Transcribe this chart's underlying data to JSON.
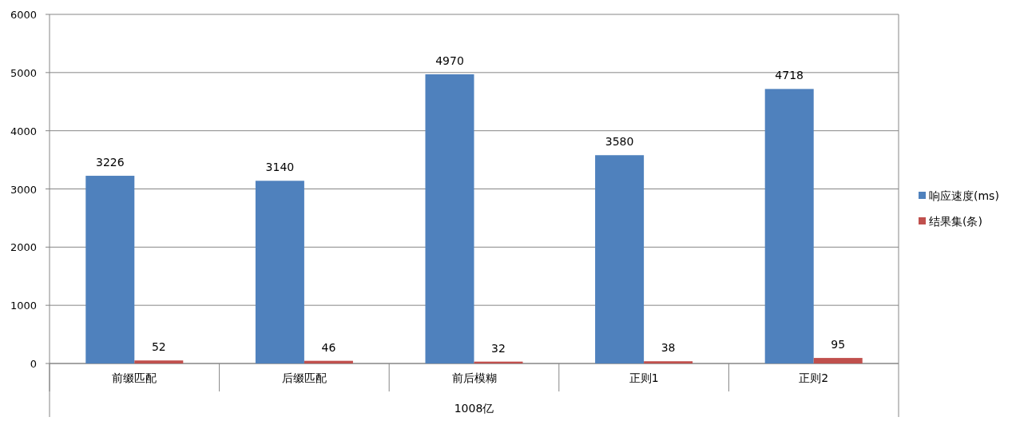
{
  "chart_data": {
    "type": "bar",
    "categories": [
      "前缀匹配",
      "后缀匹配",
      "前后模糊",
      "正则1",
      "正则2"
    ],
    "xlabel": "1008亿",
    "series": [
      {
        "name": "响应速度(ms)",
        "color": "#4f81bd",
        "values": [
          3226,
          3140,
          4970,
          3580,
          4718
        ]
      },
      {
        "name": "结果集(条)",
        "color": "#c0504d",
        "values": [
          52,
          46,
          32,
          38,
          95
        ]
      }
    ],
    "ylim": [
      0,
      6000
    ],
    "yticks": [
      0,
      1000,
      2000,
      3000,
      4000,
      5000,
      6000
    ],
    "grid": "y",
    "legend": "right",
    "data_labels": true
  }
}
